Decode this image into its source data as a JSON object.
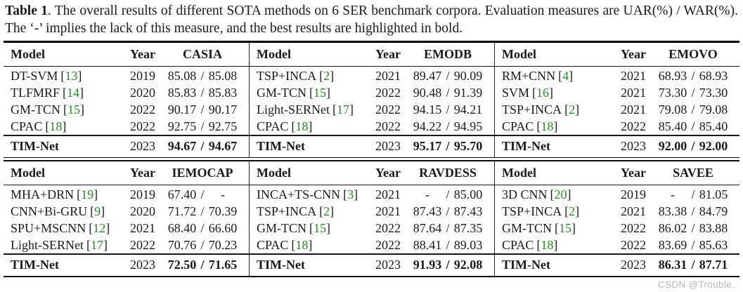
{
  "caption": {
    "label": "Table 1",
    "text": ".  The overall results of different SOTA methods on 6 SER benchmark corpora.  Evaluation measures are UAR(%) / WAR(%). The ‘-’ implies the lack of this measure, and the best results are highlighted in bold."
  },
  "column_headers": [
    "Model",
    "Year"
  ],
  "cite_format": {
    "open": "[",
    "close": "]"
  },
  "score_separator": "/",
  "colors": {
    "citation_green": "#228B22",
    "watermark_gray": "#b8b8b8"
  },
  "subtables": [
    {
      "corpus": "CASIA",
      "rows": [
        {
          "model": "DT-SVM",
          "cite": "13",
          "year": "2019",
          "uar": "85.08",
          "war": "85.08"
        },
        {
          "model": "TLFMRF",
          "cite": "14",
          "year": "2020",
          "uar": "85.83",
          "war": "85.83"
        },
        {
          "model": "GM-TCN",
          "cite": "15",
          "year": "2022",
          "uar": "90.17",
          "war": "90.17"
        },
        {
          "model": "CPAC",
          "cite": "18",
          "year": "2022",
          "uar": "92.75",
          "war": "92.75"
        }
      ],
      "best": {
        "model": "TIM-Net",
        "year": "2023",
        "uar": "94.67",
        "war": "94.67"
      }
    },
    {
      "corpus": "EMODB",
      "rows": [
        {
          "model": "TSP+INCA",
          "cite": "2",
          "year": "2021",
          "uar": "89.47",
          "war": "90.09"
        },
        {
          "model": "GM-TCN",
          "cite": "15",
          "year": "2022",
          "uar": "90.48",
          "war": "91.39"
        },
        {
          "model": "Light-SERNet",
          "cite": "17",
          "year": "2022",
          "uar": "94.15",
          "war": "94.21"
        },
        {
          "model": "CPAC",
          "cite": "18",
          "year": "2022",
          "uar": "94.22",
          "war": "94.95"
        }
      ],
      "best": {
        "model": "TIM-Net",
        "year": "2023",
        "uar": "95.17",
        "war": "95.70"
      }
    },
    {
      "corpus": "EMOVO",
      "rows": [
        {
          "model": "RM+CNN",
          "cite": "4",
          "year": "2021",
          "uar": "68.93",
          "war": "68.93"
        },
        {
          "model": "SVM",
          "cite": "16",
          "year": "2021",
          "uar": "73.30",
          "war": "73.30"
        },
        {
          "model": "TSP+INCA",
          "cite": "2",
          "year": "2021",
          "uar": "79.08",
          "war": "79.08"
        },
        {
          "model": "CPAC",
          "cite": "18",
          "year": "2022",
          "uar": "85.40",
          "war": "85.40"
        }
      ],
      "best": {
        "model": "TIM-Net",
        "year": "2023",
        "uar": "92.00",
        "war": "92.00"
      }
    },
    {
      "corpus": "IEMOCAP",
      "rows": [
        {
          "model": "MHA+DRN",
          "cite": "19",
          "year": "2019",
          "uar": "67.40",
          "war": "-"
        },
        {
          "model": "CNN+Bi-GRU",
          "cite": "9",
          "year": "2020",
          "uar": "71.72",
          "war": "70.39"
        },
        {
          "model": "SPU+MSCNN",
          "cite": "12",
          "year": "2021",
          "uar": "68.40",
          "war": "66.60"
        },
        {
          "model": "Light-SERNet",
          "cite": "17",
          "year": "2022",
          "uar": "70.76",
          "war": "70.23"
        }
      ],
      "best": {
        "model": "TIM-Net",
        "year": "2023",
        "uar": "72.50",
        "war": "71.65"
      }
    },
    {
      "corpus": "RAVDESS",
      "rows": [
        {
          "model": "INCA+TS-CNN",
          "cite": "3",
          "year": "2021",
          "uar": "-",
          "war": "85.00"
        },
        {
          "model": "TSP+INCA",
          "cite": "2",
          "year": "2021",
          "uar": "87.43",
          "war": "87.43"
        },
        {
          "model": "GM-TCN",
          "cite": "15",
          "year": "2022",
          "uar": "87.64",
          "war": "87.35"
        },
        {
          "model": "CPAC",
          "cite": "18",
          "year": "2022",
          "uar": "88.41",
          "war": "89.03"
        }
      ],
      "best": {
        "model": "TIM-Net",
        "year": "2023",
        "uar": "91.93",
        "war": "92.08"
      }
    },
    {
      "corpus": "SAVEE",
      "rows": [
        {
          "model": "3D CNN",
          "cite": "20",
          "year": "2019",
          "uar": "-",
          "war": "81.05"
        },
        {
          "model": "TSP+INCA",
          "cite": "2",
          "year": "2021",
          "uar": "83.38",
          "war": "84.79"
        },
        {
          "model": "GM-TCN",
          "cite": "15",
          "year": "2022",
          "uar": "86.02",
          "war": "83.88"
        },
        {
          "model": "CPAC",
          "cite": "18",
          "year": "2022",
          "uar": "83.69",
          "war": "85.63"
        }
      ],
      "best": {
        "model": "TIM-Net",
        "year": "2023",
        "uar": "86.31",
        "war": "87.71"
      }
    }
  ],
  "watermark": "CSDN @Trouble.."
}
